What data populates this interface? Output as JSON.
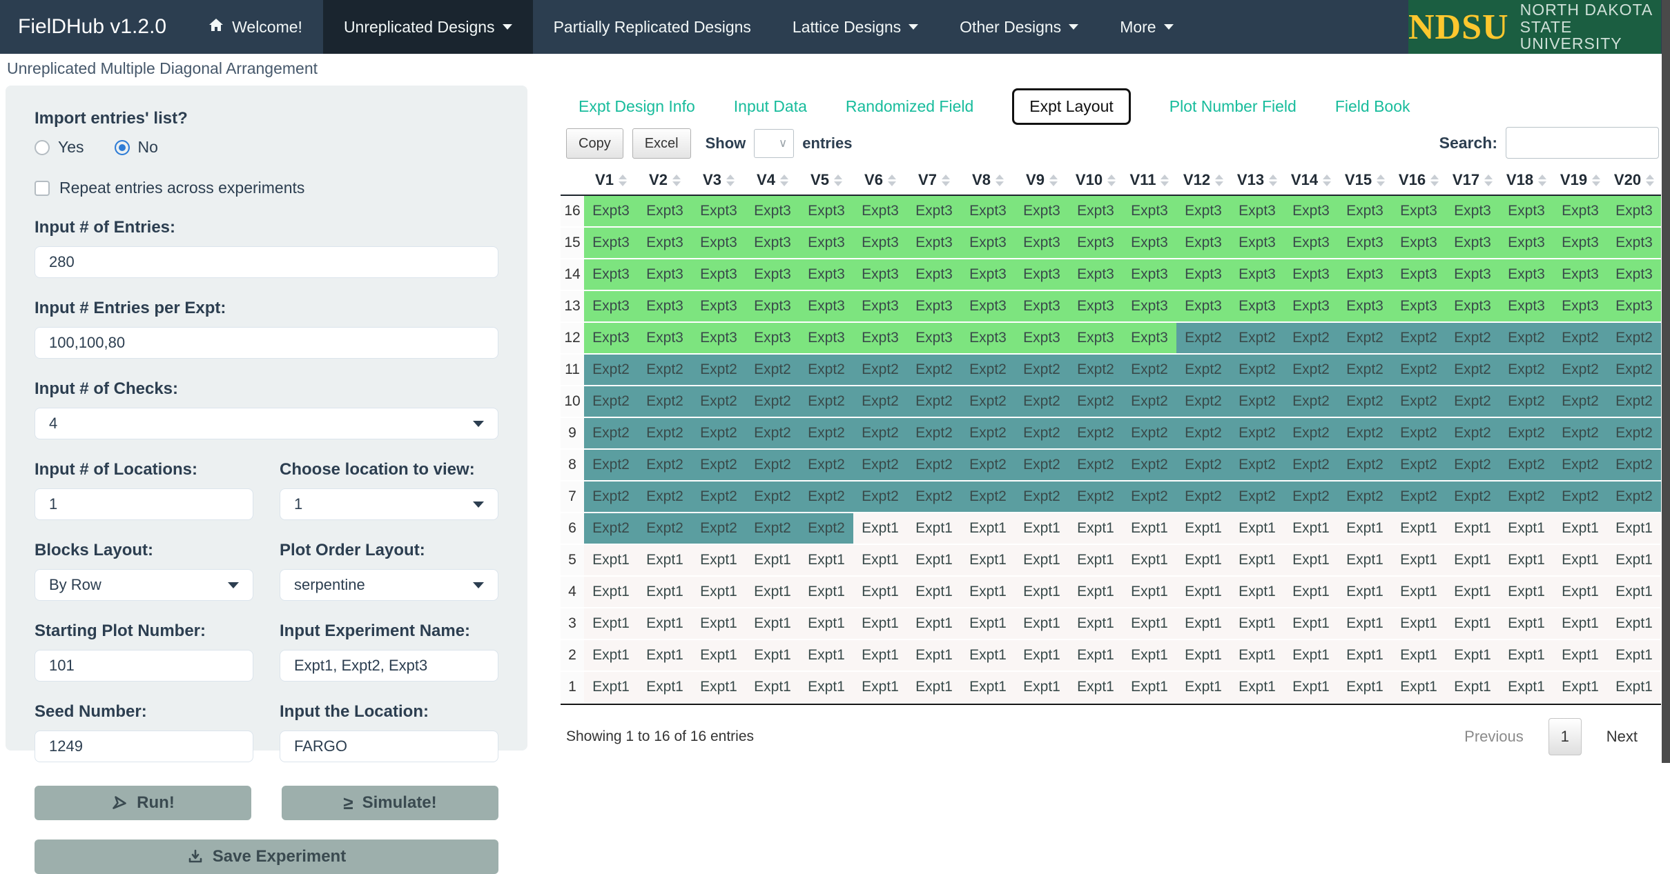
{
  "navbar": {
    "brand": "FielDHub v1.2.0",
    "items": [
      {
        "label": "Welcome!",
        "icon": "home-icon",
        "active": false,
        "caret": false
      },
      {
        "label": "Unreplicated Designs",
        "active": true,
        "caret": true
      },
      {
        "label": "Partially Replicated Designs",
        "active": false,
        "caret": false
      },
      {
        "label": "Lattice Designs",
        "active": false,
        "caret": true
      },
      {
        "label": "Other Designs",
        "active": false,
        "caret": true
      },
      {
        "label": "More",
        "active": false,
        "caret": true
      }
    ],
    "colors": {
      "bar": "#2c3e50",
      "active_item": "#1a252f"
    },
    "logo": {
      "acronym": "NDSU",
      "line1": "NORTH DAKOTA",
      "line2": "STATE UNIVERSITY",
      "bg": "#1b5e41",
      "acronym_color": "#fec72e"
    }
  },
  "page_title": "Unreplicated Multiple Diagonal Arrangement",
  "sidebar": {
    "import": {
      "label": "Import entries' list?",
      "yes": "Yes",
      "no": "No",
      "selected": "No"
    },
    "repeat": {
      "label": "Repeat entries across experiments",
      "checked": false
    },
    "entries": {
      "label": "Input # of Entries:",
      "value": "280"
    },
    "entries_per_expt": {
      "label": "Input # Entries per Expt:",
      "value": "100,100,80"
    },
    "checks": {
      "label": "Input # of Checks:",
      "value": "4"
    },
    "locations": {
      "label": "Input # of Locations:",
      "value": "1"
    },
    "location_view": {
      "label": "Choose location to view:",
      "value": "1"
    },
    "blocks_layout": {
      "label": "Blocks Layout:",
      "value": "By Row"
    },
    "plot_order": {
      "label": "Plot Order Layout:",
      "value": "serpentine"
    },
    "starting_plot": {
      "label": "Starting Plot Number:",
      "value": "101"
    },
    "experiment_name": {
      "label": "Input Experiment Name:",
      "value": "Expt1, Expt2, Expt3"
    },
    "seed": {
      "label": "Seed Number:",
      "value": "1249"
    },
    "location_input": {
      "label": "Input the Location:",
      "value": "FARGO"
    },
    "run_button": "Run!",
    "simulate_button": "Simulate!",
    "save_button": "Save Experiment",
    "icons": {
      "run": "location-arrow-icon",
      "simulate": "greater-equal-icon",
      "save": "download-icon"
    }
  },
  "tabs": {
    "items": [
      "Expt Design Info",
      "Input Data",
      "Randomized Field",
      "Expt Layout",
      "Plot Number Field",
      "Field Book"
    ],
    "active": "Expt Layout",
    "link_color": "#18bc9c"
  },
  "toolbar": {
    "copy": "Copy",
    "excel": "Excel",
    "show": "Show",
    "entries": "entries",
    "show_value": "",
    "search_label": "Search:",
    "search_value": ""
  },
  "table": {
    "columns": [
      "V1",
      "V2",
      "V3",
      "V4",
      "V5",
      "V6",
      "V7",
      "V8",
      "V9",
      "V10",
      "V11",
      "V12",
      "V13",
      "V14",
      "V15",
      "V16",
      "V17",
      "V18",
      "V19",
      "V20"
    ],
    "colors": {
      "Expt1": "#faf6f5",
      "Expt2": "#5b9ea0",
      "Expt3": "#7de47f"
    },
    "rows": [
      {
        "num": "16",
        "values": [
          "Expt3",
          "Expt3",
          "Expt3",
          "Expt3",
          "Expt3",
          "Expt3",
          "Expt3",
          "Expt3",
          "Expt3",
          "Expt3",
          "Expt3",
          "Expt3",
          "Expt3",
          "Expt3",
          "Expt3",
          "Expt3",
          "Expt3",
          "Expt3",
          "Expt3",
          "Expt3"
        ]
      },
      {
        "num": "15",
        "values": [
          "Expt3",
          "Expt3",
          "Expt3",
          "Expt3",
          "Expt3",
          "Expt3",
          "Expt3",
          "Expt3",
          "Expt3",
          "Expt3",
          "Expt3",
          "Expt3",
          "Expt3",
          "Expt3",
          "Expt3",
          "Expt3",
          "Expt3",
          "Expt3",
          "Expt3",
          "Expt3"
        ]
      },
      {
        "num": "14",
        "values": [
          "Expt3",
          "Expt3",
          "Expt3",
          "Expt3",
          "Expt3",
          "Expt3",
          "Expt3",
          "Expt3",
          "Expt3",
          "Expt3",
          "Expt3",
          "Expt3",
          "Expt3",
          "Expt3",
          "Expt3",
          "Expt3",
          "Expt3",
          "Expt3",
          "Expt3",
          "Expt3"
        ]
      },
      {
        "num": "13",
        "values": [
          "Expt3",
          "Expt3",
          "Expt3",
          "Expt3",
          "Expt3",
          "Expt3",
          "Expt3",
          "Expt3",
          "Expt3",
          "Expt3",
          "Expt3",
          "Expt3",
          "Expt3",
          "Expt3",
          "Expt3",
          "Expt3",
          "Expt3",
          "Expt3",
          "Expt3",
          "Expt3"
        ]
      },
      {
        "num": "12",
        "values": [
          "Expt3",
          "Expt3",
          "Expt3",
          "Expt3",
          "Expt3",
          "Expt3",
          "Expt3",
          "Expt3",
          "Expt3",
          "Expt3",
          "Expt3",
          "Expt2",
          "Expt2",
          "Expt2",
          "Expt2",
          "Expt2",
          "Expt2",
          "Expt2",
          "Expt2",
          "Expt2"
        ]
      },
      {
        "num": "11",
        "values": [
          "Expt2",
          "Expt2",
          "Expt2",
          "Expt2",
          "Expt2",
          "Expt2",
          "Expt2",
          "Expt2",
          "Expt2",
          "Expt2",
          "Expt2",
          "Expt2",
          "Expt2",
          "Expt2",
          "Expt2",
          "Expt2",
          "Expt2",
          "Expt2",
          "Expt2",
          "Expt2"
        ]
      },
      {
        "num": "10",
        "values": [
          "Expt2",
          "Expt2",
          "Expt2",
          "Expt2",
          "Expt2",
          "Expt2",
          "Expt2",
          "Expt2",
          "Expt2",
          "Expt2",
          "Expt2",
          "Expt2",
          "Expt2",
          "Expt2",
          "Expt2",
          "Expt2",
          "Expt2",
          "Expt2",
          "Expt2",
          "Expt2"
        ]
      },
      {
        "num": "9",
        "values": [
          "Expt2",
          "Expt2",
          "Expt2",
          "Expt2",
          "Expt2",
          "Expt2",
          "Expt2",
          "Expt2",
          "Expt2",
          "Expt2",
          "Expt2",
          "Expt2",
          "Expt2",
          "Expt2",
          "Expt2",
          "Expt2",
          "Expt2",
          "Expt2",
          "Expt2",
          "Expt2"
        ]
      },
      {
        "num": "8",
        "values": [
          "Expt2",
          "Expt2",
          "Expt2",
          "Expt2",
          "Expt2",
          "Expt2",
          "Expt2",
          "Expt2",
          "Expt2",
          "Expt2",
          "Expt2",
          "Expt2",
          "Expt2",
          "Expt2",
          "Expt2",
          "Expt2",
          "Expt2",
          "Expt2",
          "Expt2",
          "Expt2"
        ]
      },
      {
        "num": "7",
        "values": [
          "Expt2",
          "Expt2",
          "Expt2",
          "Expt2",
          "Expt2",
          "Expt2",
          "Expt2",
          "Expt2",
          "Expt2",
          "Expt2",
          "Expt2",
          "Expt2",
          "Expt2",
          "Expt2",
          "Expt2",
          "Expt2",
          "Expt2",
          "Expt2",
          "Expt2",
          "Expt2"
        ]
      },
      {
        "num": "6",
        "values": [
          "Expt2",
          "Expt2",
          "Expt2",
          "Expt2",
          "Expt2",
          "Expt1",
          "Expt1",
          "Expt1",
          "Expt1",
          "Expt1",
          "Expt1",
          "Expt1",
          "Expt1",
          "Expt1",
          "Expt1",
          "Expt1",
          "Expt1",
          "Expt1",
          "Expt1",
          "Expt1"
        ]
      },
      {
        "num": "5",
        "values": [
          "Expt1",
          "Expt1",
          "Expt1",
          "Expt1",
          "Expt1",
          "Expt1",
          "Expt1",
          "Expt1",
          "Expt1",
          "Expt1",
          "Expt1",
          "Expt1",
          "Expt1",
          "Expt1",
          "Expt1",
          "Expt1",
          "Expt1",
          "Expt1",
          "Expt1",
          "Expt1"
        ]
      },
      {
        "num": "4",
        "values": [
          "Expt1",
          "Expt1",
          "Expt1",
          "Expt1",
          "Expt1",
          "Expt1",
          "Expt1",
          "Expt1",
          "Expt1",
          "Expt1",
          "Expt1",
          "Expt1",
          "Expt1",
          "Expt1",
          "Expt1",
          "Expt1",
          "Expt1",
          "Expt1",
          "Expt1",
          "Expt1"
        ]
      },
      {
        "num": "3",
        "values": [
          "Expt1",
          "Expt1",
          "Expt1",
          "Expt1",
          "Expt1",
          "Expt1",
          "Expt1",
          "Expt1",
          "Expt1",
          "Expt1",
          "Expt1",
          "Expt1",
          "Expt1",
          "Expt1",
          "Expt1",
          "Expt1",
          "Expt1",
          "Expt1",
          "Expt1",
          "Expt1"
        ]
      },
      {
        "num": "2",
        "values": [
          "Expt1",
          "Expt1",
          "Expt1",
          "Expt1",
          "Expt1",
          "Expt1",
          "Expt1",
          "Expt1",
          "Expt1",
          "Expt1",
          "Expt1",
          "Expt1",
          "Expt1",
          "Expt1",
          "Expt1",
          "Expt1",
          "Expt1",
          "Expt1",
          "Expt1",
          "Expt1"
        ]
      },
      {
        "num": "1",
        "values": [
          "Expt1",
          "Expt1",
          "Expt1",
          "Expt1",
          "Expt1",
          "Expt1",
          "Expt1",
          "Expt1",
          "Expt1",
          "Expt1",
          "Expt1",
          "Expt1",
          "Expt1",
          "Expt1",
          "Expt1",
          "Expt1",
          "Expt1",
          "Expt1",
          "Expt1",
          "Expt1"
        ]
      }
    ]
  },
  "footer": {
    "info": "Showing 1 to 16 of 16 entries",
    "previous": "Previous",
    "page": "1",
    "next": "Next"
  }
}
